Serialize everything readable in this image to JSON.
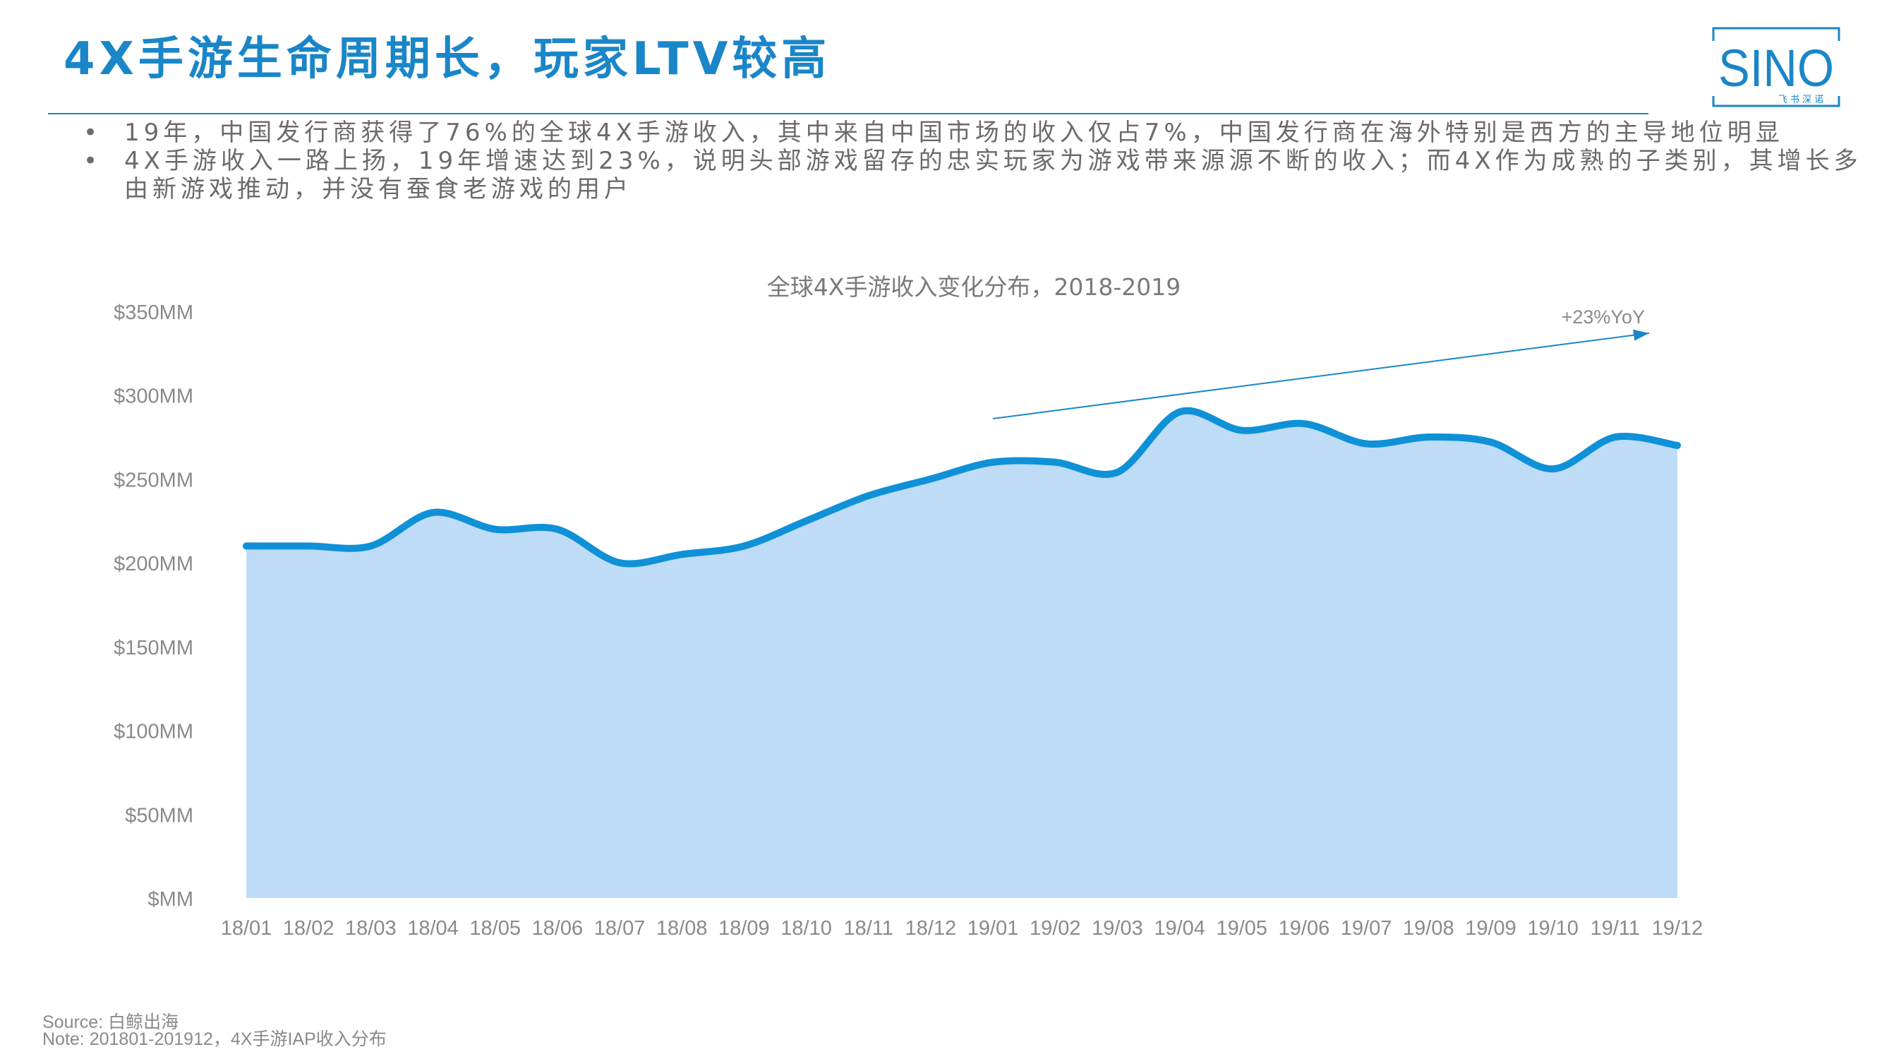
{
  "header": {
    "title": "4X手游生命周期长，玩家LTV较高",
    "logo_text": "SINO",
    "logo_subtext": "飞 书 深 诺"
  },
  "bullets": [
    "19年，中国发行商获得了76%的全球4X手游收入，其中来自中国市场的收入仅占7%，中国发行商在海外特别是西方的主导地位明显",
    "4X手游收入一路上扬，19年增速达到23%，说明头部游戏留存的忠实玩家为游戏带来源源不断的收入；而4X作为成熟的子类别，其增长多由新游戏推动，并没有蚕食老游戏的用户"
  ],
  "bullet_marker": "•",
  "chart_data": {
    "type": "area",
    "title": "全球4X手游收入变化分布，2018-2019",
    "categories": [
      "18/01",
      "18/02",
      "18/03",
      "18/04",
      "18/05",
      "18/06",
      "18/07",
      "18/08",
      "18/09",
      "18/10",
      "18/11",
      "18/12",
      "19/01",
      "19/02",
      "19/03",
      "19/04",
      "19/05",
      "19/06",
      "19/07",
      "19/08",
      "19/09",
      "19/10",
      "19/11",
      "19/12"
    ],
    "series": [
      {
        "values": [
          210,
          210,
          210,
          230,
          220,
          220,
          200,
          205,
          210,
          225,
          240,
          250,
          260,
          260,
          254,
          290,
          279,
          283,
          271,
          275,
          272,
          256,
          275,
          270
        ]
      }
    ],
    "ylim": [
      0,
      350
    ],
    "yticks": [
      0,
      50,
      100,
      150,
      200,
      250,
      300,
      350
    ],
    "ytick_labels": [
      "$MM",
      "$50MM",
      "$100MM",
      "$150MM",
      "$200MM",
      "$250MM",
      "$300MM",
      "$350MM"
    ],
    "annotation": {
      "text": "+23%YoY",
      "from_x": "19/01",
      "from_y": 286,
      "to_x": "19/12",
      "to_y": 337
    },
    "colors": {
      "line": "#0f91d8",
      "fill": "#bedcf5",
      "axis_text": "#8a8a8a",
      "title": "#7a7a7a",
      "annotation": "#1a86c8"
    },
    "grid": false,
    "legend": "none"
  },
  "footer": {
    "source": "Source: 白鲸出海",
    "note": "Note: 201801-201912，4X手游IAP收入分布"
  },
  "colors": {
    "brand": "#1a86c8",
    "body_text": "#6b6b6b"
  }
}
